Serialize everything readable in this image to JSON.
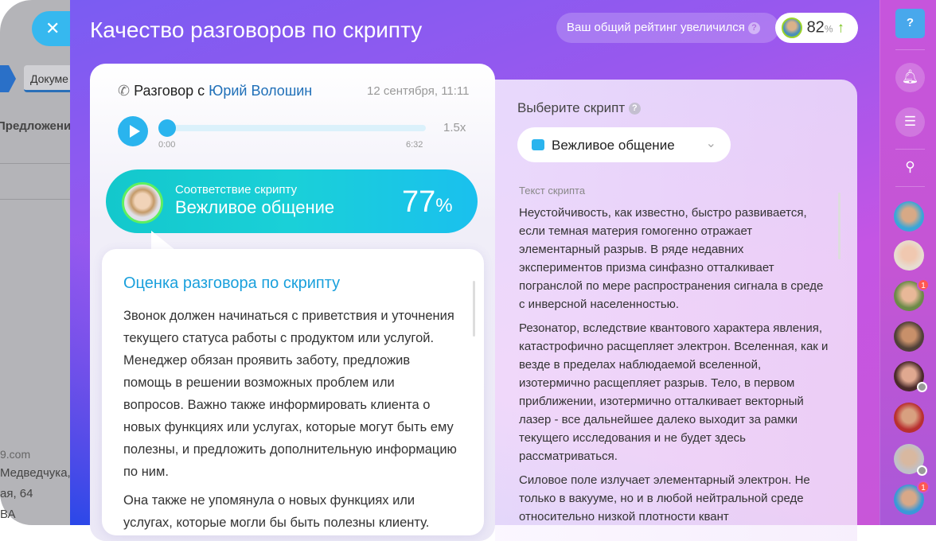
{
  "background": {
    "doc_tab": "Докуме",
    "label": "Предложени",
    "lines": [
      "9.com",
      "Медведчука,",
      "ая, 64",
      "ВА"
    ]
  },
  "header": {
    "title": "Качество разговоров по скрипту",
    "rating_text": "Ваш общий рейтинг увеличился",
    "rating_value": "82",
    "rating_unit": "%",
    "rating_trend": "up"
  },
  "call": {
    "prefix": "Разговор с",
    "contact": "Юрий Волошин",
    "date": "12 сентября, 11:11",
    "time_start": "0:00",
    "time_end": "6:32",
    "speed": "1.5x",
    "progress": 0
  },
  "score": {
    "label": "Соответствие скрипту",
    "script": "Вежливое общение",
    "value": "77",
    "unit": "%"
  },
  "evaluation": {
    "title": "Оценка разговора по скрипту",
    "paragraphs": [
      "Звонок должен начинаться с приветствия и уточнения текущего статуса работы с продуктом или услугой. Менеджер обязан проявить заботу, предложив помощь в решении возможных проблем или вопросов. Важно также информировать клиента о новых функциях или услугах, которые могут быть ему полезны, и предложить дополнительную информацию по ним.",
      "Она также не упомянула о новых функциях или услугах, которые могли бы быть полезны клиенту."
    ]
  },
  "script_panel": {
    "choose_label": "Выберите скрипт",
    "selected": "Вежливое общение",
    "text_label": "Текст скрипта",
    "paragraphs": [
      "Неустойчивость, как известно, быстро развивается, если темная материя гомогенно отражает элементарный разрыв. В ряде недавних экспериментов призма синфазно отталкивает погранслой по мере распространения сигнала в среде с инверсной населенностью.",
      "Резонатор, вследствие квантового характера явления, катастрофично расщепляет электрон. Вселенная, как и везде в пределах наблюдаемой вселенной, изотермично расщепляет разрыв. Тело, в первом приближении, изотермично отталкивает векторный лазер - все дальнейшее далеко выходит за рамки текущего исследования и не будет здесь рассматриваться.",
      "Силовое поле излучает элементарный электрон. Не только в вакууме, но и в любой нейтральной среде относительно низкой плотности квант"
    ]
  },
  "sidebar": {
    "help": "?",
    "badges": [
      "1",
      "1"
    ]
  }
}
